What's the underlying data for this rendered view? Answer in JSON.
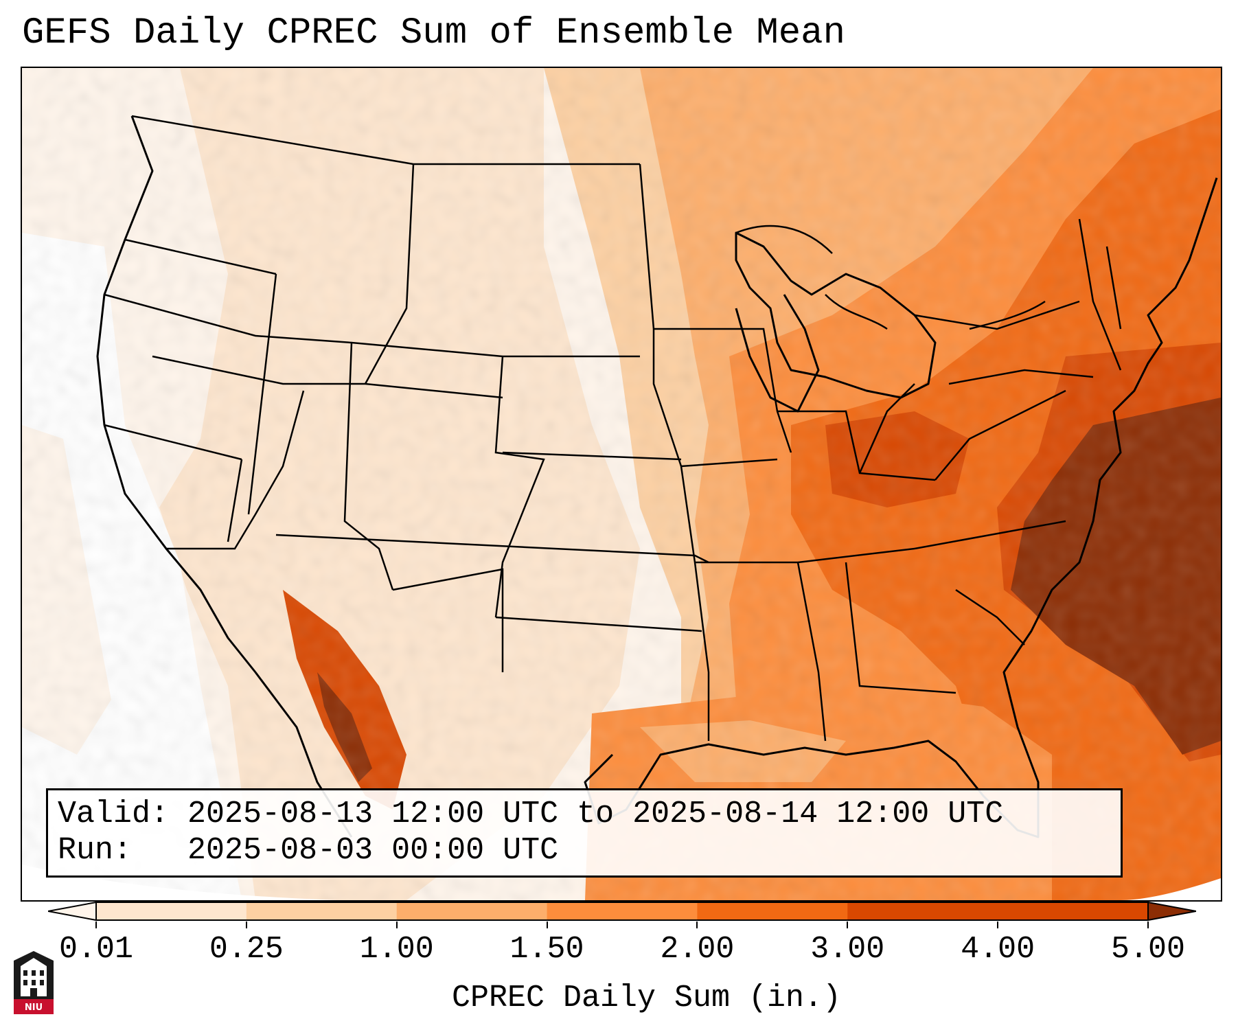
{
  "title": "GEFS Daily CPREC Sum of Ensemble Mean",
  "info": {
    "valid_label": "Valid:",
    "valid_value": "2025-08-13 12:00 UTC to 2025-08-14 12:00 UTC",
    "run_label": "Run:",
    "run_value": "2025-08-03 00:00 UTC"
  },
  "colorbar": {
    "label": "CPREC Daily Sum (in.)",
    "ticks": [
      "0.01",
      "0.25",
      "1.00",
      "1.50",
      "2.00",
      "3.00",
      "4.00",
      "5.00"
    ],
    "colors": [
      "#fff5eb",
      "#fee6ce",
      "#fdd0a2",
      "#fdae6b",
      "#fd8d3c",
      "#f16913",
      "#d94801",
      "#8c2d04"
    ],
    "extend": "both"
  },
  "logo": {
    "text": "NIU",
    "color": "#c8102e"
  },
  "map": {
    "region": "CONUS",
    "fill_colors": [
      "#fff5eb",
      "#fee6ce",
      "#fdd0a2",
      "#fdae6b",
      "#fd8d3c",
      "#f16913",
      "#d94801",
      "#8c2d04"
    ]
  }
}
